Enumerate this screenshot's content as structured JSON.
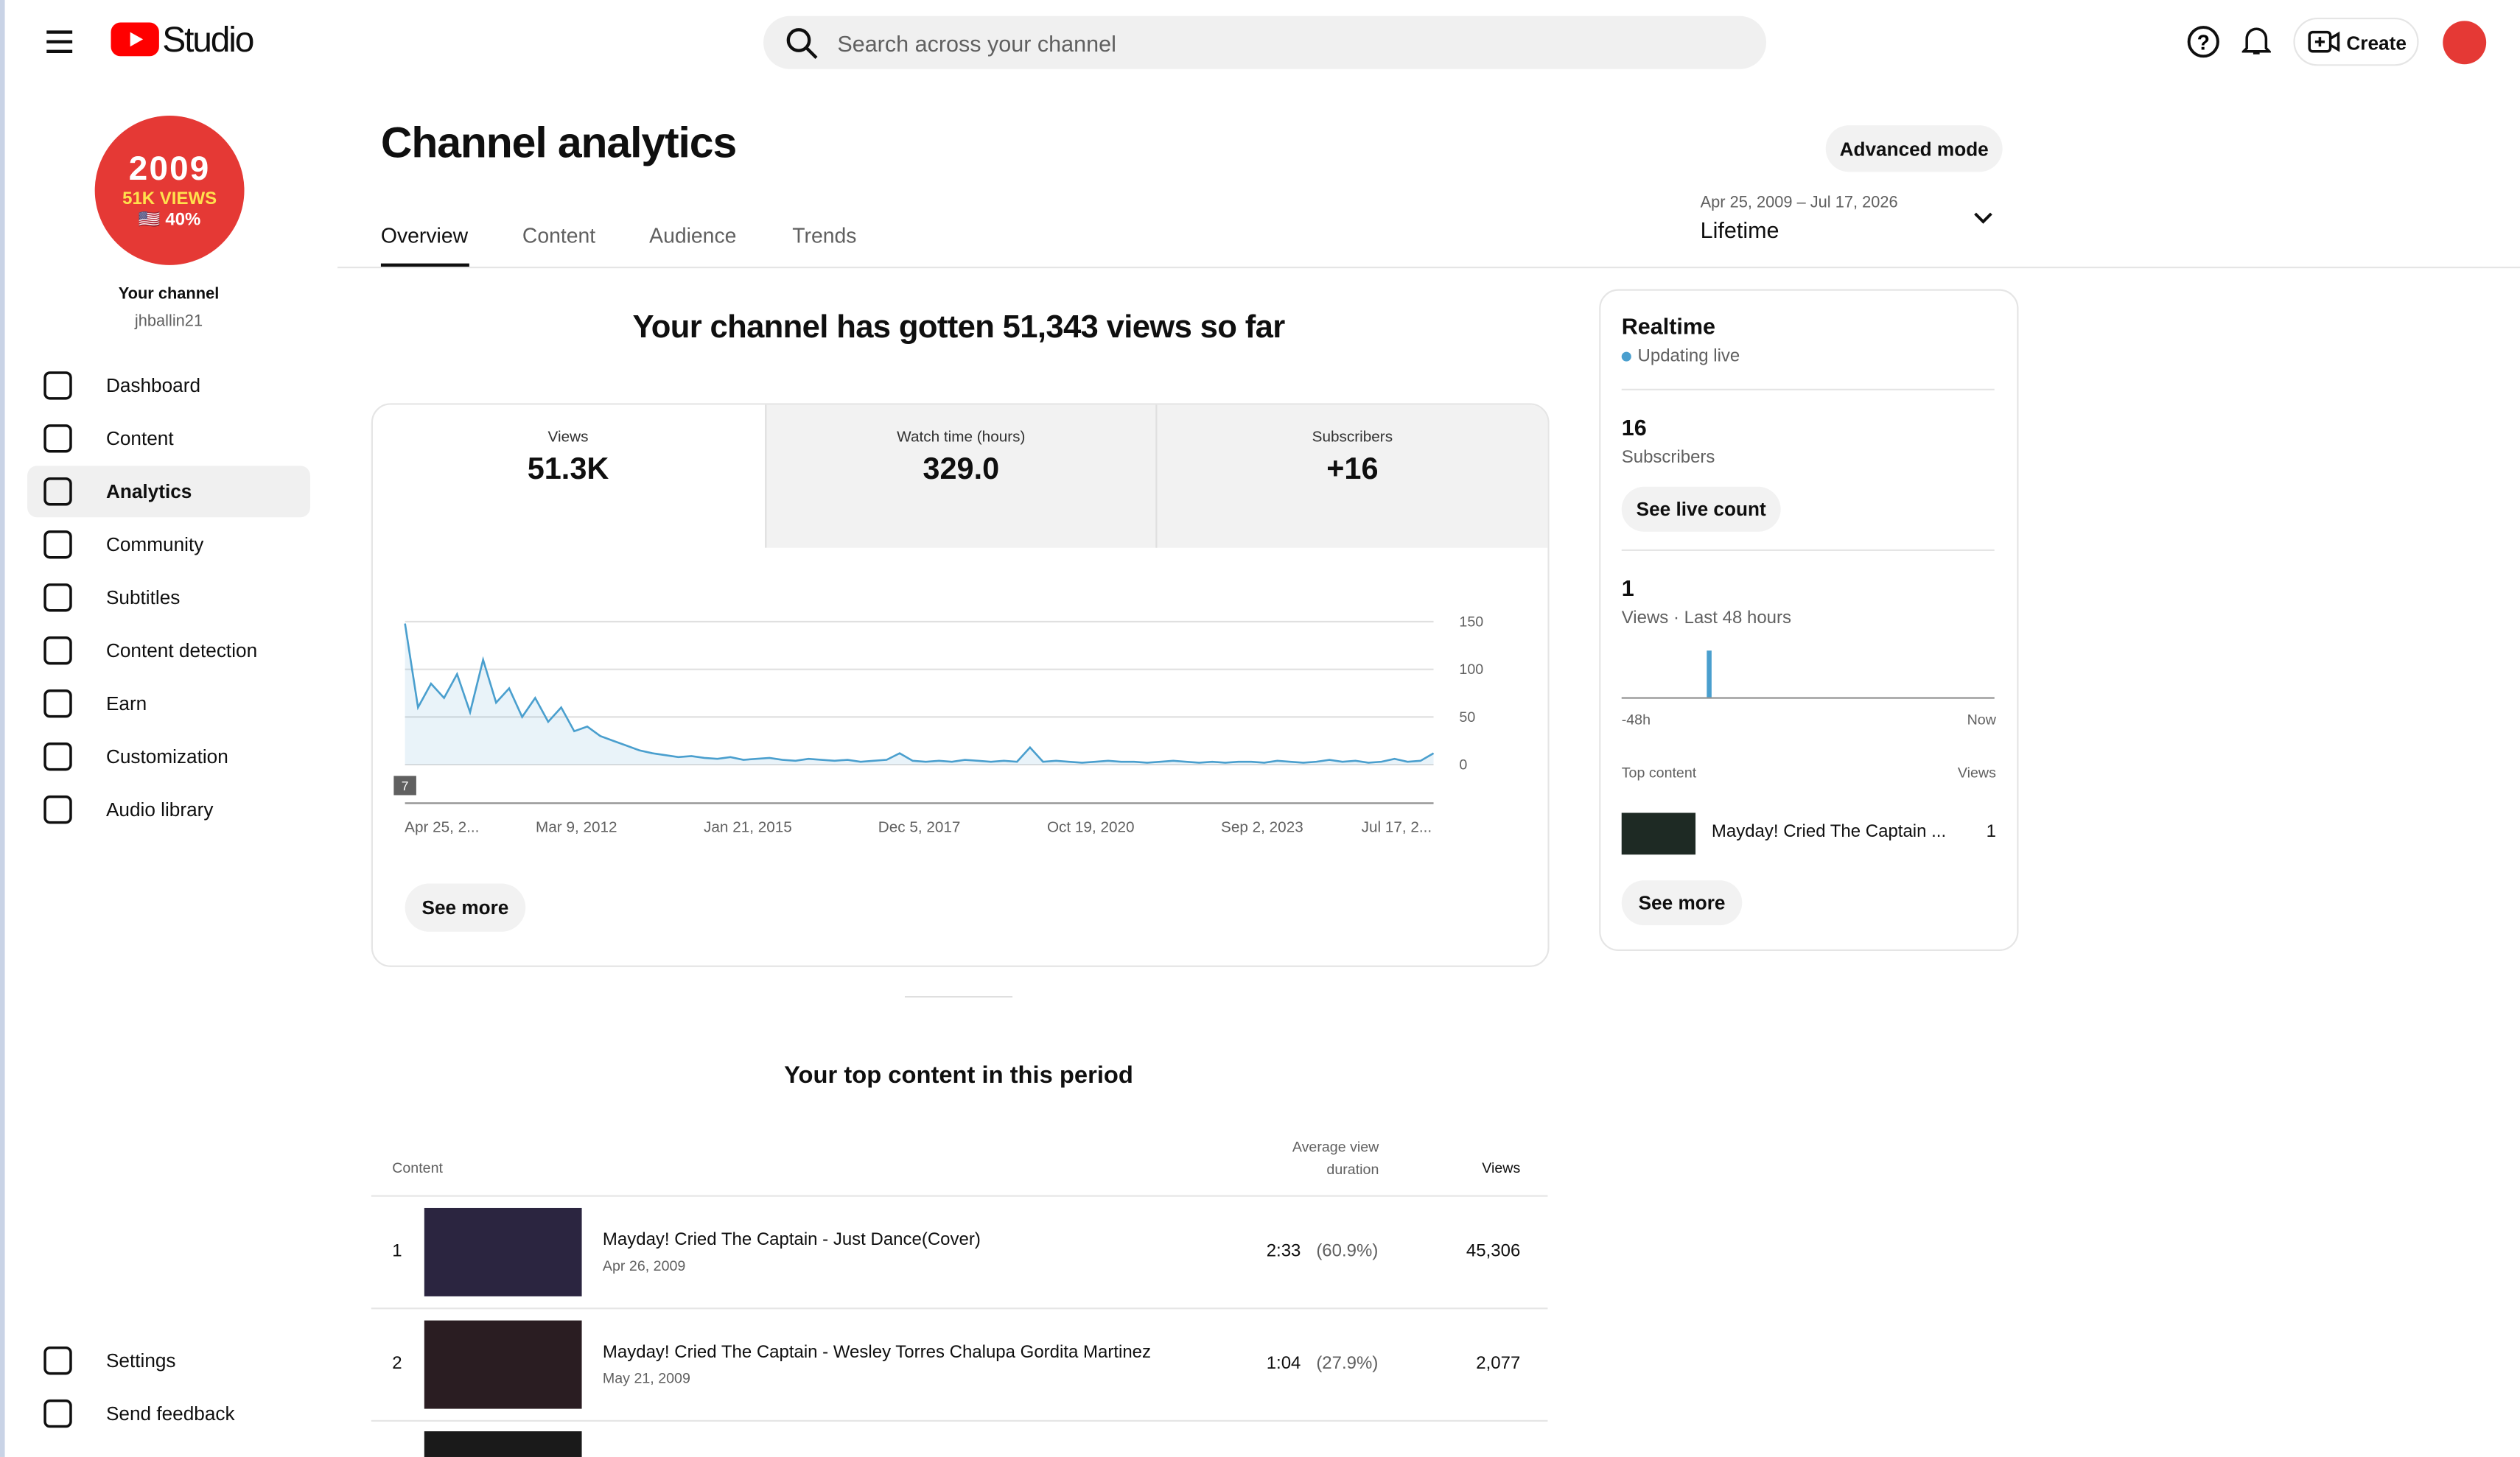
{
  "header": {
    "logo": "Studio",
    "search_placeholder": "Search across your channel",
    "create": "Create"
  },
  "sidebar": {
    "avatar_lines": [
      "2009",
      "51K VIEWS",
      "🇺🇸 40%"
    ],
    "channel_label": "Your channel",
    "handle": "jhballin21",
    "nav": [
      "Dashboard",
      "Content",
      "Analytics",
      "Community",
      "Subtitles",
      "Content detection",
      "Earn",
      "Customization",
      "Audio library"
    ],
    "footer_nav": [
      "Settings",
      "Send feedback"
    ]
  },
  "page": {
    "title": "Channel analytics",
    "advanced": "Advanced mode",
    "tabs": [
      "Overview",
      "Content",
      "Audience",
      "Trends"
    ],
    "date_range": "Apr 25, 2009 – Jul 17, 2026",
    "period": "Lifetime"
  },
  "overview": {
    "headline": "Your channel has gotten 51,343 views so far",
    "metrics": [
      {
        "label": "Views",
        "value": "51.3K"
      },
      {
        "label": "Watch time (hours)",
        "value": "329.0"
      },
      {
        "label": "Subscribers",
        "value": "+16"
      }
    ],
    "see_more": "See more"
  },
  "views_chart": {
    "type": "line",
    "color": "#4a9fce",
    "annotation": "7",
    "x_labels": [
      "Apr 25, 2...",
      "Mar 9, 2012",
      "Jan 21, 2015",
      "Dec 5, 2017",
      "Oct 19, 2020",
      "Sep 2, 2023",
      "Jul 17, 2..."
    ],
    "values": [
      148,
      60,
      85,
      70,
      95,
      55,
      110,
      65,
      80,
      50,
      70,
      45,
      60,
      35,
      40,
      30,
      25,
      20,
      15,
      12,
      10,
      8,
      9,
      7,
      6,
      8,
      5,
      6,
      7,
      5,
      4,
      6,
      5,
      4,
      5,
      3,
      4,
      5,
      12,
      4,
      3,
      4,
      3,
      5,
      4,
      3,
      4,
      3,
      18,
      3,
      4,
      3,
      2,
      3,
      4,
      3,
      3,
      2,
      3,
      4,
      3,
      2,
      3,
      2,
      3,
      3,
      2,
      4,
      3,
      2,
      3,
      5,
      3,
      4,
      2,
      3,
      6,
      3,
      4,
      12
    ],
    "ylim": [
      0,
      150
    ],
    "yticks": [
      0,
      50,
      100,
      150
    ]
  },
  "realtime": {
    "title": "Realtime",
    "status": "Updating live",
    "subscribers": "16",
    "subscribers_label": "Subscribers",
    "live_button": "See live count",
    "views": "1",
    "views_label": "Views · Last 48 hours",
    "axis_start": "-48h",
    "axis_end": "Now",
    "top_label": "Top content",
    "views_col": "Views",
    "top_title": "Mayday! Cried The Captain ...",
    "top_views": "1",
    "see_more": "See more"
  },
  "top_content": {
    "title": "Your top content in this period",
    "columns": [
      "Content",
      "Average view duration",
      "Views"
    ],
    "rows": [
      {
        "rank": "1",
        "title": "Mayday! Cried The Captain - Just Dance(Cover)",
        "date": "Apr 26, 2009",
        "duration": "2:33",
        "percent": "(60.9%)",
        "views": "45,306"
      },
      {
        "rank": "2",
        "title": "Mayday! Cried The Captain - Wesley Torres Chalupa Gordita Martinez",
        "date": "May 21, 2009",
        "duration": "1:04",
        "percent": "(27.9%)",
        "views": "2,077"
      }
    ]
  }
}
